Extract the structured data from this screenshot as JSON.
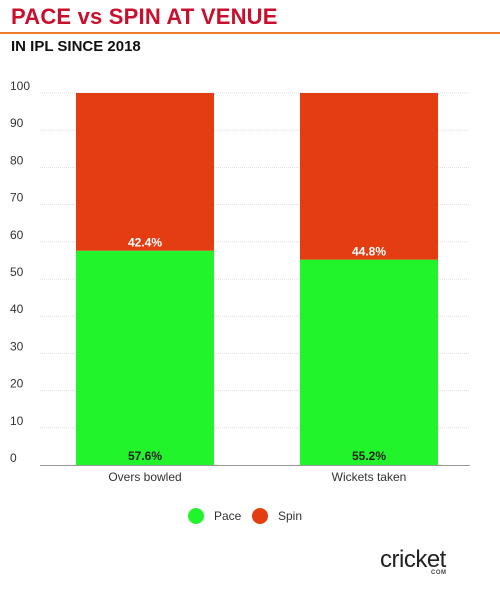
{
  "header": {
    "title": "PACE vs SPIN AT VENUE",
    "subtitle": "IN IPL SINCE 2018"
  },
  "chart_data": {
    "type": "bar",
    "stacked": true,
    "categories": [
      "Overs bowled",
      "Wickets taken"
    ],
    "series": [
      {
        "name": "Pace",
        "color": "#21f42b",
        "values": [
          57.6,
          55.2
        ],
        "labels": [
          "57.6%",
          "55.2%"
        ]
      },
      {
        "name": "Spin",
        "color": "#e33d11",
        "values": [
          42.4,
          44.8
        ],
        "labels": [
          "42.4%",
          "44.8%"
        ]
      }
    ],
    "ylim": [
      0,
      100
    ],
    "yticks": [
      0,
      10,
      20,
      30,
      40,
      50,
      60,
      70,
      80,
      90,
      100
    ],
    "grid": true,
    "legend_position": "bottom-center",
    "title": "PACE vs SPIN AT VENUE",
    "xlabel": "",
    "ylabel": ""
  },
  "legend": {
    "items": [
      {
        "label": "Pace",
        "color": "#21f42b"
      },
      {
        "label": "Spin",
        "color": "#e33d11"
      }
    ]
  },
  "logo": {
    "word": "cricket",
    "suffix": "COM"
  }
}
